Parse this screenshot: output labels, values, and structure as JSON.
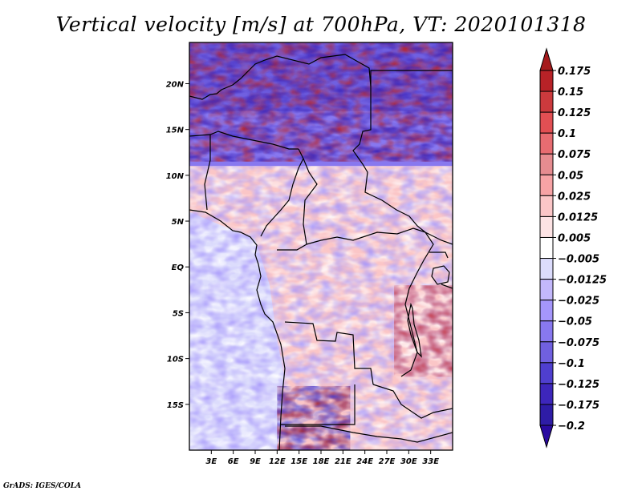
{
  "chart_data": {
    "type": "heatmap",
    "title": "Vertical velocity [m/s] at 700hPa, VT: 2020101318",
    "variable": "Vertical velocity",
    "units": "m/s",
    "level": "700hPa",
    "valid_time": "2020101318",
    "xlabel": "",
    "ylabel": "",
    "x_range": [
      0,
      36
    ],
    "y_range": [
      -20,
      24.5
    ],
    "x_ticks": [
      {
        "value": 3,
        "label": "3E"
      },
      {
        "value": 6,
        "label": "6E"
      },
      {
        "value": 9,
        "label": "9E"
      },
      {
        "value": 12,
        "label": "12E"
      },
      {
        "value": 15,
        "label": "15E"
      },
      {
        "value": 18,
        "label": "18E"
      },
      {
        "value": 21,
        "label": "21E"
      },
      {
        "value": 24,
        "label": "24E"
      },
      {
        "value": 27,
        "label": "27E"
      },
      {
        "value": 30,
        "label": "30E"
      },
      {
        "value": 33,
        "label": "33E"
      }
    ],
    "y_ticks": [
      {
        "value": 20,
        "label": "20N"
      },
      {
        "value": 15,
        "label": "15N"
      },
      {
        "value": 10,
        "label": "10N"
      },
      {
        "value": 5,
        "label": "5N"
      },
      {
        "value": 0,
        "label": "EQ"
      },
      {
        "value": -5,
        "label": "5S"
      },
      {
        "value": -10,
        "label": "10S"
      },
      {
        "value": -15,
        "label": "15S"
      }
    ],
    "colorbar": {
      "placement": "right",
      "extend": "both",
      "levels": [
        0.175,
        0.15,
        0.125,
        0.1,
        0.075,
        0.05,
        0.025,
        0.0125,
        0.005,
        -0.005,
        -0.0125,
        -0.025,
        -0.05,
        -0.075,
        -0.1,
        -0.125,
        -0.175,
        -0.2
      ],
      "labels": [
        "0.175",
        "0.15",
        "0.125",
        "0.1",
        "0.075",
        "0.05",
        "0.025",
        "0.0125",
        "0.005",
        "−0.005",
        "−0.0125",
        "−0.025",
        "−0.05",
        "−0.075",
        "−0.1",
        "−0.125",
        "−0.175",
        "−0.2"
      ],
      "colors_top_to_bottom": [
        "#a51a1c",
        "#b82227",
        "#cc3a3d",
        "#e24f53",
        "#e76c71",
        "#e68c90",
        "#f7a3a5",
        "#fbc6c7",
        "#fde3e4",
        "#ffffff",
        "#dcdcfc",
        "#c3b8fb",
        "#a596fb",
        "#8878ef",
        "#7060e0",
        "#4f3fcf",
        "#3d26bb",
        "#2e1ca6",
        "#2a0aa0"
      ]
    },
    "regions": [
      {
        "area": "Sahara / Sahel north of ~12N",
        "pattern": "strong alternating positive and negative bands (mostly -0.1 to 0.15)"
      },
      {
        "area": "Central Africa 5S-10N",
        "pattern": "weak positive (0.005 to 0.05) with scattered negative"
      },
      {
        "area": "Gulf of Guinea / South Atlantic",
        "pattern": "weak negative (-0.005 to -0.05)"
      },
      {
        "area": "Southern Angola / Namibia ~15-20S",
        "pattern": "strong positive and negative streaks"
      }
    ]
  },
  "footer": {
    "credit": "GrADS: IGES/COLA"
  }
}
